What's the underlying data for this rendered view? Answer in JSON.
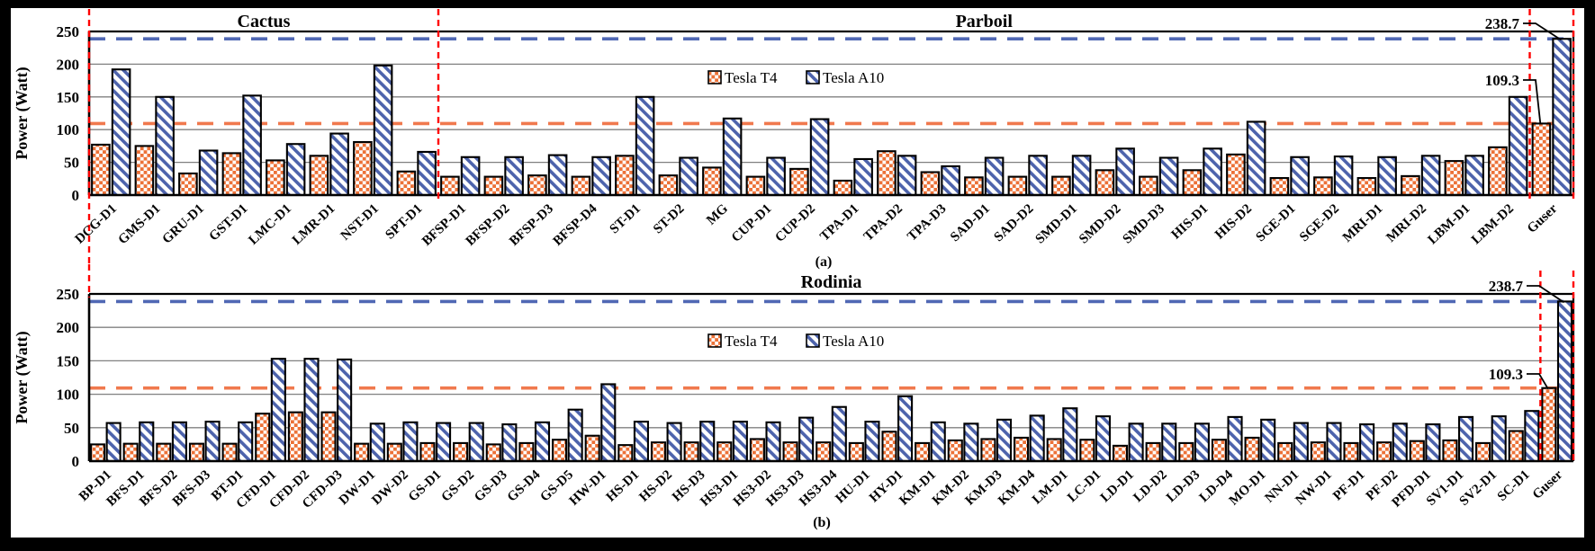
{
  "figure": {
    "background": "#000000",
    "panel_background": "#ffffff"
  },
  "colors": {
    "t4_fill": "#EC7137",
    "a10_fill": "#4D63AC",
    "t4_hline": "#F0794E",
    "a10_hline": "#5068B4",
    "separator": "#FF0000",
    "grid": "#808080",
    "axis": "#000000"
  },
  "legend": {
    "items": [
      {
        "label": "Tesla T4",
        "pattern": "checker"
      },
      {
        "label": "Tesla A10",
        "pattern": "stripe"
      }
    ]
  },
  "chart_data": [
    {
      "id": "a",
      "type": "bar",
      "sub_label": "(a)",
      "ylabel": "Power (Watt)",
      "ylim": [
        0,
        250
      ],
      "yticks": [
        0,
        50,
        100,
        150,
        200,
        250
      ],
      "grid": true,
      "legend_visible": true,
      "group_titles": [
        {
          "label": "Cactus",
          "from": 0,
          "to": 7
        },
        {
          "label": "Parboil",
          "from": 8,
          "to": 32
        }
      ],
      "categories": [
        "DCG-D1",
        "GMS-D1",
        "GRU-D1",
        "GST-D1",
        "LMC-D1",
        "LMR-D1",
        "NST-D1",
        "SPT-D1",
        "BFSP-D1",
        "BFSP-D2",
        "BFSP-D3",
        "BFSP-D4",
        "ST-D1",
        "ST-D2",
        "MG",
        "CUP-D1",
        "CUP-D2",
        "TPA-D1",
        "TPA-D2",
        "TPA-D3",
        "SAD-D1",
        "SAD-D2",
        "SMD-D1",
        "SMD-D2",
        "SMD-D3",
        "HIS-D1",
        "HIS-D2",
        "SGE-D1",
        "SGE-D2",
        "MRI-D1",
        "MRI-D2",
        "LBM-D1",
        "LBM-D2",
        "Guser"
      ],
      "series": [
        {
          "name": "Tesla T4",
          "values": [
            77,
            75,
            33,
            64,
            53,
            60,
            81,
            36,
            28,
            28,
            30,
            28,
            60,
            30,
            42,
            28,
            40,
            22,
            67,
            35,
            27,
            28,
            28,
            38,
            28,
            38,
            62,
            26,
            27,
            26,
            29,
            52,
            73,
            109.3
          ]
        },
        {
          "name": "Tesla A10",
          "values": [
            192,
            150,
            68,
            152,
            78,
            94,
            198,
            66,
            58,
            58,
            61,
            58,
            150,
            57,
            117,
            57,
            116,
            55,
            60,
            44,
            57,
            60,
            60,
            71,
            57,
            71,
            112,
            58,
            59,
            58,
            60,
            60,
            150,
            238.7
          ]
        }
      ],
      "hlines": [
        {
          "value": 238.7,
          "series": "Tesla A10"
        },
        {
          "value": 109.3,
          "series": "Tesla T4"
        }
      ],
      "separators": [
        {
          "after_index": -1,
          "extent": "long"
        },
        {
          "after_index": 7,
          "extent": "plot"
        },
        {
          "after_index": 32,
          "extent": "plot"
        },
        {
          "after_index": 33,
          "extent": "plot"
        }
      ],
      "annotations": [
        {
          "text": "238.7",
          "series_index": 1,
          "category_index": 33
        },
        {
          "text": "109.3",
          "series_index": 0,
          "category_index": 33
        }
      ]
    },
    {
      "id": "b",
      "type": "bar",
      "sub_label": "(b)",
      "ylabel": "Power (Watt)",
      "ylim": [
        0,
        250
      ],
      "yticks": [
        0,
        50,
        100,
        150,
        200,
        250
      ],
      "grid": true,
      "legend_visible": true,
      "group_titles": [
        {
          "label": "Rodinia",
          "from": 0,
          "to": 44
        }
      ],
      "categories": [
        "BP-D1",
        "BFS-D1",
        "BFS-D2",
        "BFS-D3",
        "BT-D1",
        "CFD-D1",
        "CFD-D2",
        "CFD-D3",
        "DW-D1",
        "DW-D2",
        "GS-D1",
        "GS-D2",
        "GS-D3",
        "GS-D4",
        "GS-D5",
        "HW-D1",
        "HS-D1",
        "HS-D2",
        "HS-D3",
        "HS3-D1",
        "HS3-D2",
        "HS3-D3",
        "HS3-D4",
        "HU-D1",
        "HY-D1",
        "KM-D1",
        "KM-D2",
        "KM-D3",
        "KM-D4",
        "LM-D1",
        "LC-D1",
        "LD-D1",
        "LD-D2",
        "LD-D3",
        "LD-D4",
        "MO-D1",
        "NN-D1",
        "NW-D1",
        "PF-D1",
        "PF-D2",
        "PFD-D1",
        "SV1-D1",
        "SV2-D1",
        "SC-D1",
        "Guser"
      ],
      "series": [
        {
          "name": "Tesla T4",
          "values": [
            25,
            26,
            26,
            26,
            26,
            71,
            73,
            73,
            26,
            26,
            27,
            27,
            25,
            27,
            32,
            38,
            24,
            28,
            28,
            28,
            33,
            28,
            28,
            27,
            44,
            27,
            31,
            33,
            35,
            33,
            32,
            23,
            27,
            27,
            32,
            35,
            27,
            28,
            27,
            28,
            30,
            31,
            27,
            45,
            109.3
          ]
        },
        {
          "name": "Tesla A10",
          "values": [
            57,
            58,
            58,
            59,
            58,
            153,
            153,
            152,
            56,
            58,
            57,
            57,
            55,
            58,
            77,
            115,
            59,
            57,
            59,
            59,
            58,
            65,
            81,
            59,
            97,
            58,
            56,
            62,
            68,
            79,
            67,
            56,
            56,
            56,
            66,
            62,
            57,
            57,
            55,
            56,
            55,
            66,
            67,
            75,
            238.7
          ]
        }
      ],
      "hlines": [
        {
          "value": 238.7,
          "series": "Tesla A10"
        },
        {
          "value": 109.3,
          "series": "Tesla T4"
        }
      ],
      "separators": [
        {
          "after_index": -1,
          "extent": "upper"
        },
        {
          "after_index": 43,
          "extent": "plot"
        },
        {
          "after_index": 44,
          "extent": "plot"
        }
      ],
      "annotations": [
        {
          "text": "238.7",
          "series_index": 1,
          "category_index": 44
        },
        {
          "text": "109.3",
          "series_index": 0,
          "category_index": 44
        }
      ]
    }
  ]
}
